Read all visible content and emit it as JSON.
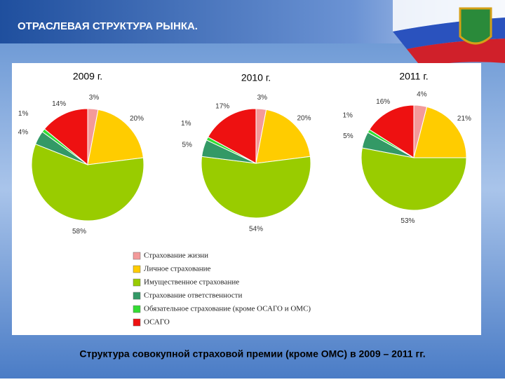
{
  "header": {
    "title": "ОТРАСЛЕВАЯ СТРУКТУРА РЫНКА."
  },
  "chart_data": [
    {
      "type": "pie",
      "title": "2009 г.",
      "categories": [
        "Страхование жизни",
        "Личное страхование",
        "Имущественное страхование",
        "Страхование ответственности",
        "Обязательное страхование (кроме ОСАГО и ОМС)",
        "ОСАГО"
      ],
      "values": [
        3,
        20,
        58,
        4,
        1,
        14
      ],
      "value_labels": [
        "3%",
        "20%",
        "58%",
        "4%",
        "1%",
        "14%"
      ],
      "colors": [
        "#f39a9a",
        "#ffcc00",
        "#99cc00",
        "#339966",
        "#33dd33",
        "#ee1111"
      ]
    },
    {
      "type": "pie",
      "title": "2010 г.",
      "categories": [
        "Страхование жизни",
        "Личное страхование",
        "Имущественное страхование",
        "Страхование ответственности",
        "Обязательное страхование (кроме ОСАГО и ОМС)",
        "ОСАГО"
      ],
      "values": [
        3,
        20,
        54,
        5,
        1,
        17
      ],
      "value_labels": [
        "3%",
        "20%",
        "54%",
        "5%",
        "1%",
        "17%"
      ],
      "colors": [
        "#f39a9a",
        "#ffcc00",
        "#99cc00",
        "#339966",
        "#33dd33",
        "#ee1111"
      ]
    },
    {
      "type": "pie",
      "title": "2011 г.",
      "categories": [
        "Страхование жизни",
        "Личное страхование",
        "Имущественное страхование",
        "Страхование ответственности",
        "Обязательное страхование (кроме ОСАГО и ОМС)",
        "ОСАГО"
      ],
      "values": [
        4,
        21,
        53,
        5,
        1,
        16
      ],
      "value_labels": [
        "4%",
        "21%",
        "53%",
        "5%",
        "1%",
        "16%"
      ],
      "colors": [
        "#f39a9a",
        "#ffcc00",
        "#99cc00",
        "#339966",
        "#33dd33",
        "#ee1111"
      ]
    }
  ],
  "caption": "Структура совокупной страховой премии (кроме ОМС) в 2009 – 2011 гг."
}
